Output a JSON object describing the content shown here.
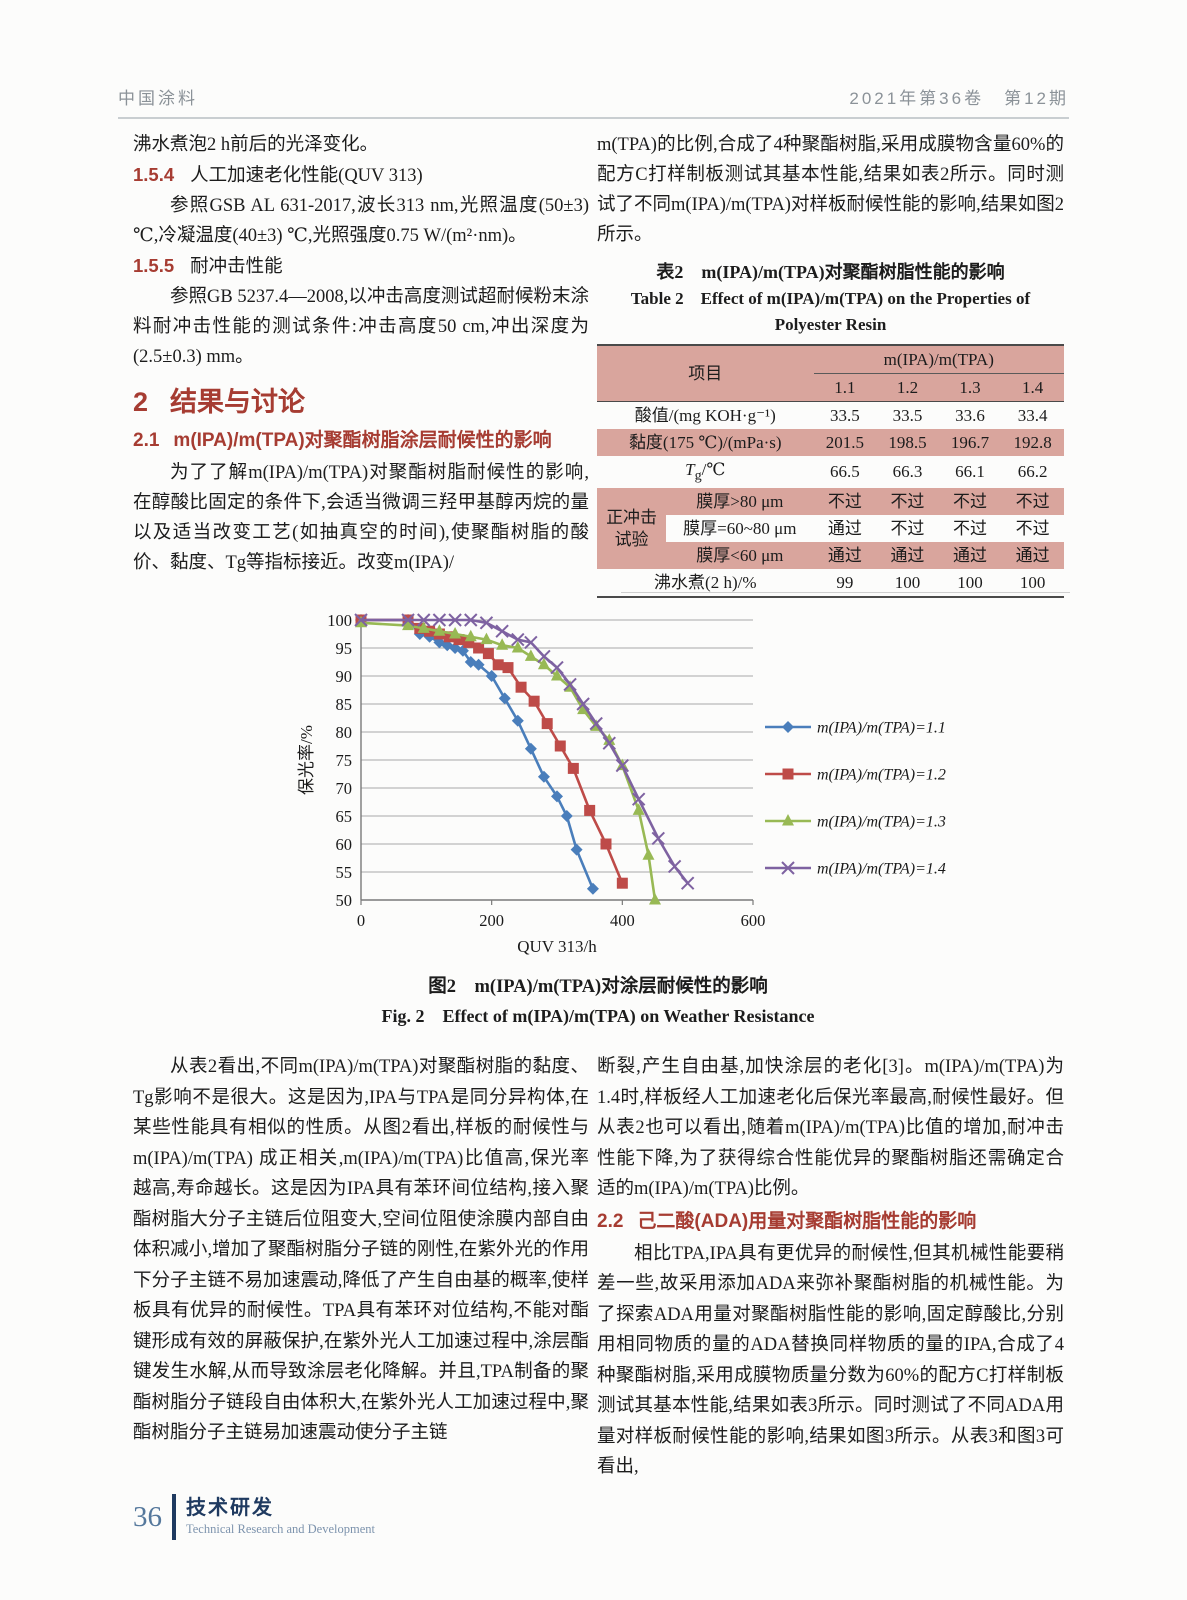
{
  "header": {
    "journal": "中国涂料",
    "issue": "2021年第36卷　第12期"
  },
  "left_top": {
    "p1": "沸水煮泡2 h前后的光泽变化。",
    "h154_num": "1.5.4",
    "h154_title": "人工加速老化性能(QUV 313)",
    "p2": "参照GSB AL 631-2017,波长313 nm,光照温度(50±3) ℃,冷凝温度(40±3) ℃,光照强度0.75 W/(m²·nm)。",
    "h155_num": "1.5.5",
    "h155_title": "耐冲击性能",
    "p3": "参照GB 5237.4—2008,以冲击高度测试超耐候粉末涂料耐冲击性能的测试条件:冲击高度50 cm,冲出深度为(2.5±0.3) mm。",
    "h2_num": "2",
    "h2_title": "结果与讨论",
    "h21_num": "2.1",
    "h21_title": "m(IPA)/m(TPA)对聚酯树脂涂层耐候性的影响",
    "p4": "为了了解m(IPA)/m(TPA)对聚酯树脂耐候性的影响,在醇酸比固定的条件下,会适当微调三羟甲基醇丙烷的量以及适当改变工艺(如抽真空的时间),使聚酯树脂的酸价、黏度、Tg等指标接近。改变m(IPA)/"
  },
  "right_top": {
    "p1": "m(TPA)的比例,合成了4种聚酯树脂,采用成膜物含量60%的配方C打样制板测试其基本性能,结果如表2所示。同时测试了不同m(IPA)/m(TPA)对样板耐候性能的影响,结果如图2所示。"
  },
  "table": {
    "caption_zh": "表2　m(IPA)/m(TPA)对聚酯树脂性能的影响",
    "caption_en_line1": "Table 2　Effect of m(IPA)/m(TPA) on the Properties of",
    "caption_en_line2": "Polyester Resin",
    "col_header": {
      "item": "项目",
      "group": "m(IPA)/m(TPA)",
      "ratios": [
        "1.1",
        "1.2",
        "1.3",
        "1.4"
      ]
    },
    "rows": {
      "acid": {
        "label": "酸值/(mg KOH·g⁻¹)",
        "values": [
          "33.5",
          "33.5",
          "33.6",
          "33.4"
        ]
      },
      "viscosity": {
        "label": "黏度(175 ℃)/(mPa·s)",
        "values": [
          "201.5",
          "198.5",
          "196.7",
          "192.8"
        ]
      },
      "tg": {
        "symbol": "T",
        "sub": "g",
        "unit": "/℃",
        "values": [
          "66.5",
          "66.3",
          "66.1",
          "66.2"
        ]
      },
      "impact_group": "正冲击试验",
      "impact1": {
        "label": "膜厚>80 μm",
        "values": [
          "不过",
          "不过",
          "不过",
          "不过"
        ]
      },
      "impact2": {
        "label": "膜厚=60~80 μm",
        "values": [
          "通过",
          "不过",
          "不过",
          "不过"
        ]
      },
      "impact3": {
        "label": "膜厚<60 μm",
        "values": [
          "通过",
          "通过",
          "通过",
          "通过"
        ]
      },
      "boil": {
        "label": "沸水煮(2 h)/%",
        "values": [
          "99",
          "100",
          "100",
          "100"
        ]
      }
    }
  },
  "figure": {
    "caption_zh": "图2　m(IPA)/m(TPA)对涂层耐候性的影响",
    "caption_en": "Fig. 2　Effect of m(IPA)/m(TPA) on Weather Resistance"
  },
  "chart_data": {
    "type": "line",
    "xlabel": "QUV 313/h",
    "ylabel": "保光率/%",
    "xlim": [
      0,
      600
    ],
    "ylim": [
      50,
      100
    ],
    "xticks": [
      0,
      200,
      400,
      600
    ],
    "ytick_step": 5,
    "grid": "horizontal",
    "legend_position": "right",
    "series": [
      {
        "name": "m(IPA)/m(TPA)=1.1",
        "color": "#4a7ebb",
        "marker": "diamond",
        "points": [
          [
            0,
            100
          ],
          [
            72,
            100
          ],
          [
            90,
            97.5
          ],
          [
            105,
            97
          ],
          [
            120,
            96
          ],
          [
            132,
            95.5
          ],
          [
            144,
            95
          ],
          [
            156,
            94.5
          ],
          [
            168,
            92.5
          ],
          [
            180,
            92
          ],
          [
            200,
            90
          ],
          [
            220,
            86
          ],
          [
            240,
            82
          ],
          [
            260,
            77
          ],
          [
            280,
            72
          ],
          [
            300,
            68.5
          ],
          [
            315,
            65
          ],
          [
            330,
            59
          ],
          [
            355,
            52
          ]
        ]
      },
      {
        "name": "m(IPA)/m(TPA)=1.2",
        "color": "#be4b48",
        "marker": "square",
        "points": [
          [
            0,
            100
          ],
          [
            72,
            100
          ],
          [
            90,
            98.5
          ],
          [
            105,
            98
          ],
          [
            120,
            97.5
          ],
          [
            135,
            97
          ],
          [
            150,
            96.5
          ],
          [
            165,
            96
          ],
          [
            180,
            95
          ],
          [
            195,
            94
          ],
          [
            210,
            92
          ],
          [
            225,
            91.5
          ],
          [
            245,
            88
          ],
          [
            265,
            85.5
          ],
          [
            285,
            81.5
          ],
          [
            305,
            77.5
          ],
          [
            325,
            73.5
          ],
          [
            350,
            66
          ],
          [
            375,
            60
          ],
          [
            400,
            53
          ]
        ]
      },
      {
        "name": "m(IPA)/m(TPA)=1.3",
        "color": "#98b954",
        "marker": "triangle",
        "points": [
          [
            0,
            99.5
          ],
          [
            72,
            99
          ],
          [
            96,
            98.5
          ],
          [
            120,
            98
          ],
          [
            144,
            97.5
          ],
          [
            168,
            97
          ],
          [
            192,
            96.5
          ],
          [
            216,
            95.5
          ],
          [
            240,
            95
          ],
          [
            260,
            93.5
          ],
          [
            280,
            92
          ],
          [
            300,
            90
          ],
          [
            320,
            88
          ],
          [
            340,
            84
          ],
          [
            360,
            81
          ],
          [
            380,
            78.5
          ],
          [
            400,
            74
          ],
          [
            425,
            66
          ],
          [
            440,
            58
          ],
          [
            450,
            50
          ]
        ]
      },
      {
        "name": "m(IPA)/m(TPA)=1.4",
        "color": "#7e62a1",
        "marker": "xmark",
        "points": [
          [
            0,
            100
          ],
          [
            72,
            100
          ],
          [
            96,
            100
          ],
          [
            120,
            100
          ],
          [
            144,
            100
          ],
          [
            168,
            100
          ],
          [
            192,
            99.5
          ],
          [
            216,
            98
          ],
          [
            240,
            96.5
          ],
          [
            260,
            96
          ],
          [
            280,
            93.5
          ],
          [
            300,
            91.5
          ],
          [
            320,
            88.5
          ],
          [
            340,
            85
          ],
          [
            360,
            81.5
          ],
          [
            380,
            78
          ],
          [
            400,
            74
          ],
          [
            425,
            68
          ],
          [
            455,
            61
          ],
          [
            480,
            56
          ],
          [
            500,
            53
          ]
        ]
      }
    ]
  },
  "left_bottom": {
    "p1": "从表2看出,不同m(IPA)/m(TPA)对聚酯树脂的黏度、Tg影响不是很大。这是因为,IPA与TPA是同分异构体,在某些性能具有相似的性质。从图2看出,样板的耐候性与m(IPA)/m(TPA) 成正相关,m(IPA)/m(TPA)比值高,保光率越高,寿命越长。这是因为IPA具有苯环间位结构,接入聚酯树脂大分子主链后位阻变大,空间位阻使涂膜内部自由体积减小,增加了聚酯树脂分子链的刚性,在紫外光的作用下分子主链不易加速震动,降低了产生自由基的概率,使样板具有优异的耐候性。TPA具有苯环对位结构,不能对酯键形成有效的屏蔽保护,在紫外光人工加速过程中,涂层酯键发生水解,从而导致涂层老化降解。并且,TPA制备的聚酯树脂分子链段自由体积大,在紫外光人工加速过程中,聚酯树脂分子主链易加速震动使分子主链"
  },
  "right_bottom": {
    "p1": "断裂,产生自由基,加快涂层的老化[3]。m(IPA)/m(TPA)为1.4时,样板经人工加速老化后保光率最高,耐候性最好。但从表2也可以看出,随着m(IPA)/m(TPA)比值的增加,耐冲击性能下降,为了获得综合性能优异的聚酯树脂还需确定合适的m(IPA)/m(TPA)比例。",
    "h22_num": "2.2",
    "h22_title": "己二酸(ADA)用量对聚酯树脂性能的影响",
    "p2": "相比TPA,IPA具有更优异的耐候性,但其机械性能要稍差一些,故采用添加ADA来弥补聚酯树脂的机械性能。为了探索ADA用量对聚酯树脂性能的影响,固定醇酸比,分别用相同物质的量的ADA替换同样物质的量的IPA,合成了4种聚酯树脂,采用成膜物质量分数为60%的配方C打样制板测试其基本性能,结果如表3所示。同时测试了不同ADA用量对样板耐候性能的影响,结果如图3所示。从表3和图3可看出,"
  },
  "footer": {
    "page": "36",
    "section_zh": "技术研发",
    "section_en": "Technical Research and Development"
  },
  "colors": {
    "heading_red": "#a63c32",
    "table_pink": "#d9a59d",
    "footer_blue": "#1f3a60",
    "footer_gray_blue": "#55789c",
    "header_gray": "#8b9298"
  }
}
